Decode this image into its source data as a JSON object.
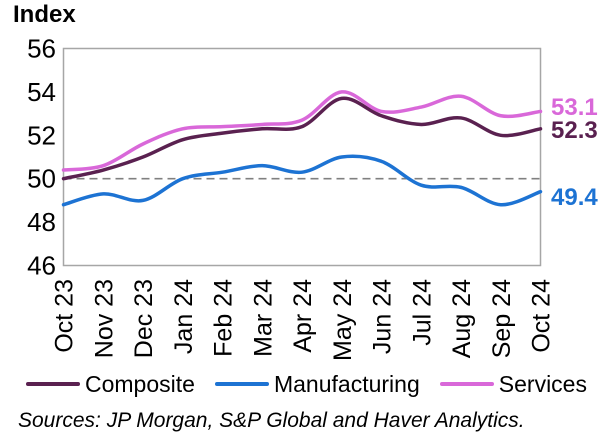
{
  "title": "Index",
  "chart_data": {
    "type": "line",
    "x": [
      "Oct 23",
      "Nov 23",
      "Dec 23",
      "Jan 24",
      "Feb 24",
      "Mar 24",
      "Apr 24",
      "May 24",
      "Jun 24",
      "Jul 24",
      "Aug 24",
      "Sep 24",
      "Oct 24"
    ],
    "series": [
      {
        "name": "Composite",
        "color": "#5a2150",
        "values": [
          50.0,
          50.4,
          51.0,
          51.8,
          52.1,
          52.3,
          52.4,
          53.7,
          52.9,
          52.5,
          52.8,
          52.0,
          52.3
        ],
        "end_label": "52.3"
      },
      {
        "name": "Manufacturing",
        "color": "#1d73d3",
        "values": [
          48.8,
          49.3,
          49.0,
          50.0,
          50.3,
          50.6,
          50.3,
          51.0,
          50.8,
          49.7,
          49.6,
          48.8,
          49.4
        ],
        "end_label": "49.4"
      },
      {
        "name": "Services",
        "color": "#d968d9",
        "values": [
          50.4,
          50.6,
          51.6,
          52.3,
          52.4,
          52.5,
          52.7,
          54.0,
          53.1,
          53.3,
          53.8,
          52.9,
          53.1
        ],
        "end_label": "53.1"
      }
    ],
    "ylabel": "Index",
    "ylim": [
      46,
      56
    ],
    "yticks": [
      "56",
      "54",
      "52",
      "50",
      "48",
      "46"
    ],
    "reference_line": 50,
    "grid": false,
    "legend_position": "bottom"
  },
  "colors": {
    "plot_border": "#a6a6a6",
    "reference_line": "#808080",
    "text": "#000000"
  },
  "source_note": "Sources: JP Morgan, S&P Global and Haver Analytics."
}
